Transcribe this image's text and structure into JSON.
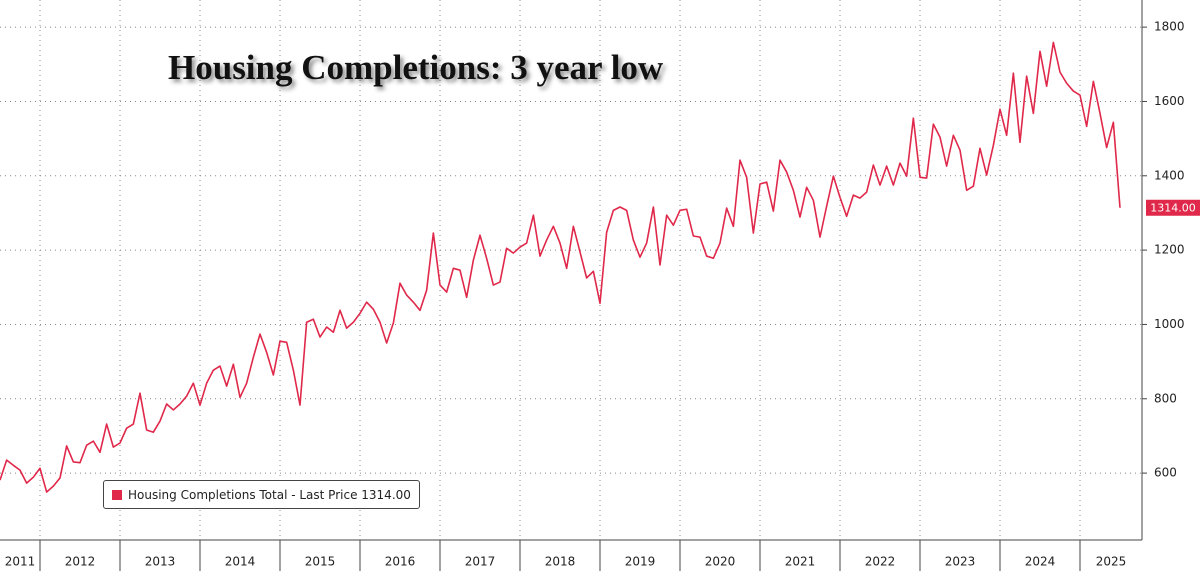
{
  "chart_data": {
    "type": "line",
    "title": "Housing Completions: 3 year low",
    "x": [
      2011.5,
      2011.583,
      2011.667,
      2011.75,
      2011.833,
      2011.917,
      2012,
      2012.083,
      2012.167,
      2012.25,
      2012.333,
      2012.417,
      2012.5,
      2012.583,
      2012.667,
      2012.75,
      2012.833,
      2012.917,
      2013,
      2013.083,
      2013.167,
      2013.25,
      2013.333,
      2013.417,
      2013.5,
      2013.583,
      2013.667,
      2013.75,
      2013.833,
      2013.917,
      2014,
      2014.083,
      2014.167,
      2014.25,
      2014.333,
      2014.417,
      2014.5,
      2014.583,
      2014.667,
      2014.75,
      2014.833,
      2014.917,
      2015,
      2015.083,
      2015.167,
      2015.25,
      2015.333,
      2015.417,
      2015.5,
      2015.583,
      2015.667,
      2015.75,
      2015.833,
      2015.917,
      2016,
      2016.083,
      2016.167,
      2016.25,
      2016.333,
      2016.417,
      2016.5,
      2016.583,
      2016.667,
      2016.75,
      2016.833,
      2016.917,
      2017,
      2017.083,
      2017.167,
      2017.25,
      2017.333,
      2017.417,
      2017.5,
      2017.583,
      2017.667,
      2017.75,
      2017.833,
      2017.917,
      2018,
      2018.083,
      2018.167,
      2018.25,
      2018.333,
      2018.417,
      2018.5,
      2018.583,
      2018.667,
      2018.75,
      2018.833,
      2018.917,
      2019,
      2019.083,
      2019.167,
      2019.25,
      2019.333,
      2019.417,
      2019.5,
      2019.583,
      2019.667,
      2019.75,
      2019.833,
      2019.917,
      2020,
      2020.083,
      2020.167,
      2020.25,
      2020.333,
      2020.417,
      2020.5,
      2020.583,
      2020.667,
      2020.75,
      2020.833,
      2020.917,
      2021,
      2021.083,
      2021.167,
      2021.25,
      2021.333,
      2021.417,
      2021.5,
      2021.583,
      2021.667,
      2021.75,
      2021.833,
      2021.917,
      2022,
      2022.083,
      2022.167,
      2022.25,
      2022.333,
      2022.417,
      2022.5,
      2022.583,
      2022.667,
      2022.75,
      2022.833,
      2022.917,
      2023,
      2023.083,
      2023.167,
      2023.25,
      2023.333,
      2023.417,
      2023.5,
      2023.583,
      2023.667,
      2023.75,
      2023.833,
      2023.917,
      2024,
      2024.083,
      2024.167,
      2024.25,
      2024.333,
      2024.417,
      2024.5,
      2024.583,
      2024.667,
      2024.75,
      2024.833,
      2024.917,
      2025,
      2025.083,
      2025.167,
      2025.25,
      2025.333,
      2025.417,
      2025.5
    ],
    "series": [
      {
        "name": "Housing Completions Total - Last Price 1314.00",
        "color": "#e0284a",
        "values": [
          581,
          635,
          621,
          608,
          573,
          589,
          613,
          549,
          565,
          587,
          673,
          630,
          628,
          675,
          686,
          656,
          732,
          670,
          681,
          721,
          732,
          815,
          716,
          710,
          740,
          786,
          770,
          786,
          807,
          842,
          783,
          842,
          877,
          888,
          834,
          893,
          804,
          842,
          912,
          974,
          925,
          864,
          955,
          952,
          877,
          783,
          1006,
          1014,
          966,
          993,
          979,
          1038,
          990,
          1006,
          1030,
          1060,
          1041,
          1006,
          950,
          1004,
          1111,
          1079,
          1060,
          1038,
          1092,
          1246,
          1106,
          1087,
          1151,
          1146,
          1073,
          1173,
          1240,
          1178,
          1106,
          1114,
          1205,
          1192,
          1208,
          1219,
          1294,
          1184,
          1227,
          1264,
          1219,
          1151,
          1264,
          1195,
          1125,
          1143,
          1057,
          1248,
          1307,
          1316,
          1307,
          1227,
          1181,
          1219,
          1316,
          1160,
          1294,
          1267,
          1307,
          1310,
          1238,
          1235,
          1184,
          1178,
          1219,
          1313,
          1264,
          1442,
          1396,
          1246,
          1378,
          1383,
          1305,
          1442,
          1410,
          1361,
          1289,
          1369,
          1334,
          1235,
          1318,
          1399,
          1342,
          1291,
          1348,
          1340,
          1356,
          1429,
          1375,
          1426,
          1375,
          1434,
          1399,
          1555,
          1396,
          1394,
          1539,
          1504,
          1426,
          1509,
          1469,
          1361,
          1372,
          1474,
          1402,
          1482,
          1579,
          1509,
          1676,
          1490,
          1668,
          1568,
          1735,
          1641,
          1759,
          1679,
          1649,
          1628,
          1617,
          1533,
          1654,
          1568,
          1476,
          1544,
          1314
        ]
      }
    ],
    "last_price_label": {
      "value": 1314,
      "label": "1314.00"
    },
    "xlim": [
      2011.5,
      2025.775
    ],
    "xticks": [
      2011,
      2012,
      2013,
      2014,
      2015,
      2016,
      2017,
      2018,
      2019,
      2020,
      2021,
      2022,
      2023,
      2024,
      2025
    ],
    "ylim": [
      420,
      1873
    ],
    "yticks": [
      600,
      800,
      1000,
      1200,
      1400,
      1600,
      1800
    ],
    "grid": true
  }
}
